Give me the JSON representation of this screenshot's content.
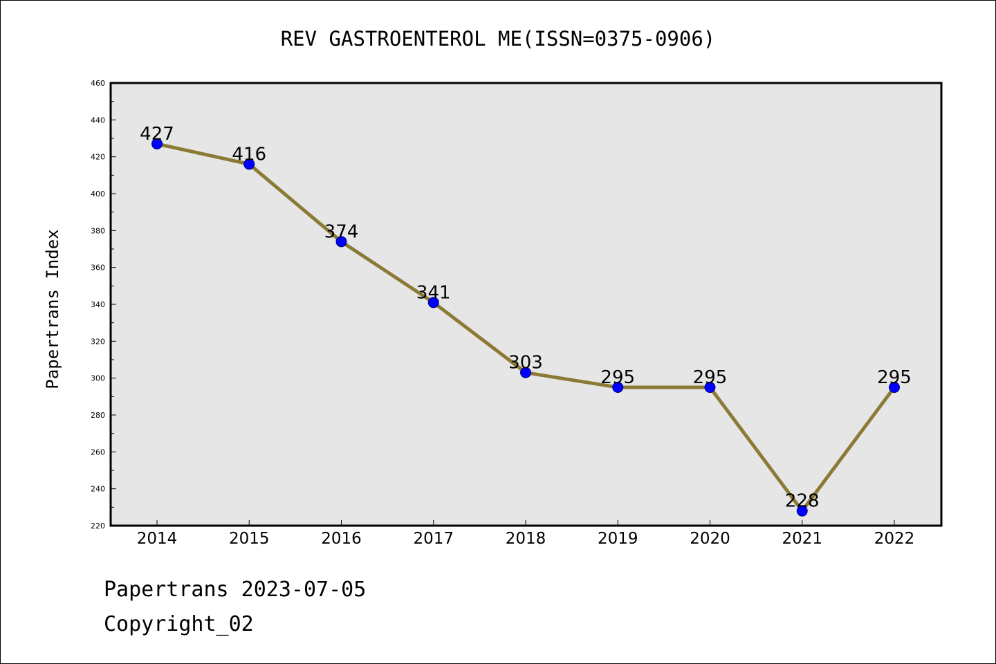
{
  "chart_data": {
    "type": "line",
    "title": "REV GASTROENTEROL ME(ISSN=0375-0906)",
    "xlabel": "",
    "ylabel": "Papertrans Index",
    "categories": [
      "2014",
      "2015",
      "2016",
      "2017",
      "2018",
      "2019",
      "2020",
      "2021",
      "2022"
    ],
    "series": [
      {
        "values": [
          427,
          416,
          374,
          341,
          303,
          295,
          295,
          228,
          295
        ]
      }
    ],
    "ylim": [
      220,
      460
    ],
    "yticks": [
      220,
      240,
      260,
      280,
      300,
      320,
      340,
      360,
      380,
      400,
      420,
      440,
      460
    ],
    "grid": false,
    "line_color": "#8b7a36",
    "marker_color": "#0000ff",
    "plot_background": "#e6e6e6"
  },
  "footer": {
    "line1": "Papertrans 2023-07-05",
    "line2": "Copyright_02"
  }
}
